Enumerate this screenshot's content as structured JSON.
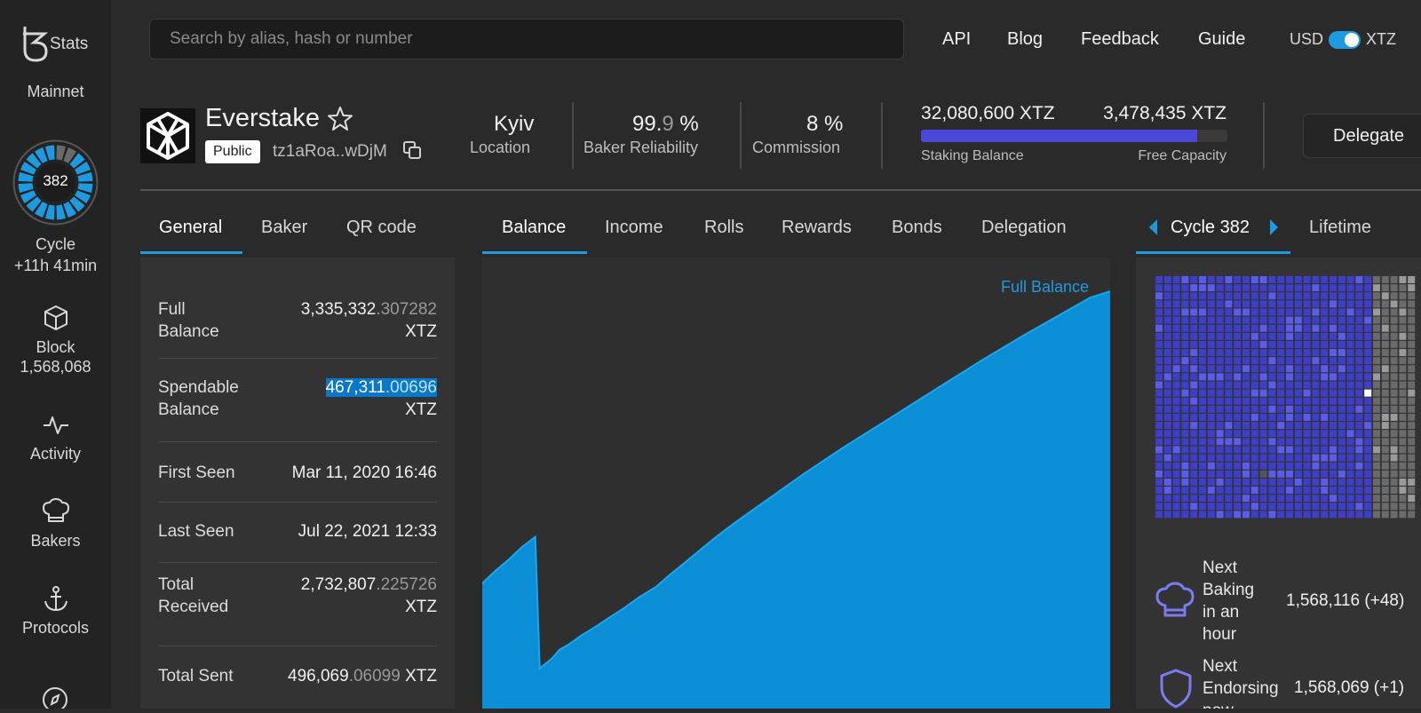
{
  "sidebar": {
    "brand": "Stats",
    "network": "Mainnet",
    "cycle_number": "382",
    "cycle_label": "Cycle",
    "cycle_eta": "+11h 41min",
    "cycle_progress": 0.1,
    "block_label": "Block",
    "block_number": "1,568,068",
    "activity_label": "Activity",
    "bakers_label": "Bakers",
    "protocols_label": "Protocols",
    "icons": [
      "tz-stats-logo",
      "cube-icon",
      "pulse-icon",
      "chef-hat-icon",
      "anchor-icon",
      "compass-icon"
    ]
  },
  "header": {
    "search_placeholder": "Search by alias, hash or number",
    "links": [
      "API",
      "Blog",
      "Feedback",
      "Guide"
    ],
    "currency_left": "USD",
    "currency_right": "XTZ",
    "toggle_on": true
  },
  "baker": {
    "name": "Everstake",
    "badge": "Public",
    "address": "tz1aRoa..wDjM",
    "location_value": "Kyiv",
    "location_label": "Location",
    "reliability_main": "99.",
    "reliability_dim": "9",
    "reliability_unit": " %",
    "reliability_label": "Baker Reliability",
    "commission_value": "8 %",
    "commission_label": "Commission",
    "staking_balance": "32,080,600 XTZ",
    "free_capacity": "3,478,435 XTZ",
    "staking_label": "Staking Balance",
    "capacity_label": "Free Capacity",
    "staking_fill_fraction": 0.9,
    "delegate_label": "Delegate"
  },
  "tabs": {
    "left": [
      "General",
      "Baker",
      "QR code"
    ],
    "middle": [
      "Balance",
      "Income",
      "Rolls",
      "Rewards",
      "Bonds",
      "Delegation"
    ],
    "cycle_label": "Cycle 382",
    "lifetime_label": "Lifetime"
  },
  "general": {
    "full_balance_label_1": "Full",
    "full_balance_label_2": "Balance",
    "full_balance_int": "3,335,332",
    "full_balance_dec": ".307282",
    "full_balance_unit": "XTZ",
    "spendable_label_1": "Spendable",
    "spendable_label_2": "Balance",
    "spendable_int": "467,311",
    "spendable_dec": ".00696",
    "spendable_unit": "XTZ",
    "first_seen_label": "First Seen",
    "first_seen": "Mar 11, 2020 16:46",
    "last_seen_label": "Last Seen",
    "last_seen": "Jul 22, 2021 12:33",
    "total_received_label_1": "Total",
    "total_received_label_2": "Received",
    "total_received_int": "2,732,807",
    "total_received_dec": ".225726",
    "total_received_unit": "XTZ",
    "total_sent_label": "Total Sent",
    "total_sent_int": "496,069",
    "total_sent_dec": ".06099",
    "total_sent_unit": "XTZ"
  },
  "chart_data": {
    "type": "area",
    "legend": "Full Balance",
    "color": "#0a8fd6",
    "x": [
      0,
      12,
      24,
      36,
      48,
      52,
      63,
      70,
      78,
      89,
      100,
      114,
      128,
      142,
      157,
      170,
      184,
      199,
      213,
      228,
      244,
      260,
      276,
      292,
      309,
      326,
      344,
      362,
      380,
      398,
      416,
      434,
      452,
      471,
      490,
      510,
      530,
      550,
      568
    ],
    "values": [
      10.0,
      11.0,
      11.9,
      12.9,
      13.7,
      3.2,
      4.0,
      4.7,
      5.1,
      5.8,
      6.4,
      7.2,
      8.0,
      8.9,
      9.7,
      10.7,
      11.7,
      12.8,
      13.8,
      14.8,
      15.8,
      16.8,
      17.8,
      18.8,
      19.8,
      20.8,
      21.8,
      22.8,
      23.8,
      24.8,
      25.8,
      26.8,
      27.8,
      28.8,
      29.8,
      30.8,
      31.8,
      32.8,
      33.3
    ],
    "ylim": [
      0,
      36
    ]
  },
  "cycle_panel": {
    "next_baking_label_1": "Next",
    "next_baking_label_2": "Baking",
    "next_baking_label_3": "in an",
    "next_baking_label_4": "hour",
    "next_baking_value": "1,568,116 (+48)",
    "next_endorsing_label_1": "Next",
    "next_endorsing_label_2": "Endorsing",
    "next_endorsing_label_3": "now",
    "next_endorsing_value": "1,568,069 (+1)",
    "grid_completed_fraction": 0.82,
    "colors": {
      "base": "#3d3fc8",
      "highlight": "#5a5cf0",
      "pending": "#6a6a6a"
    }
  }
}
